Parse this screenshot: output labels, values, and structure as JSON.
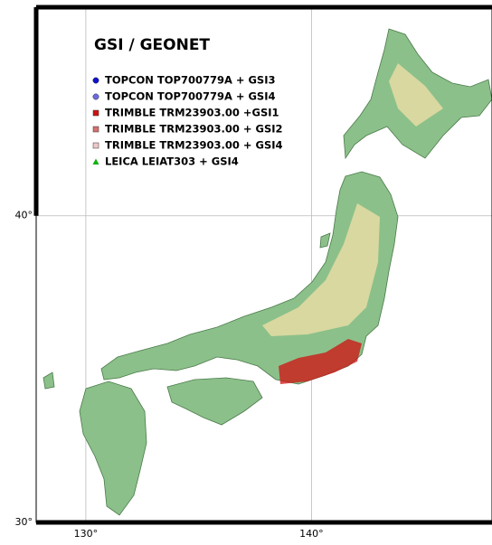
{
  "map": {
    "title": "GSI / GEONET",
    "legend": [
      {
        "label": "TOPCON TOP700779A + GSI3",
        "marker": "circle",
        "color": "#1010d0"
      },
      {
        "label": "TOPCON TOP700779A + GSI4",
        "marker": "circle",
        "color": "#6a6ae0"
      },
      {
        "label": "TRIMBLE TRM23903.00 +GSI1",
        "marker": "square",
        "color": "#d01010"
      },
      {
        "label": "TRIMBLE TRM23903.00 + GSI2",
        "marker": "square",
        "color": "#d87070"
      },
      {
        "label": "TRIMBLE TRM23903.00 + GSI4",
        "marker": "square",
        "color": "#f0c8c8"
      },
      {
        "label": "LEICA LEIAT303 + GSI4",
        "marker": "triangle",
        "color": "#10b010"
      }
    ],
    "lon_range": [
      127.8,
      148
    ],
    "lat_range": [
      30,
      46.8
    ],
    "lon_ticks": [
      {
        "value": 130,
        "label": "130°"
      },
      {
        "value": 140,
        "label": "140°"
      }
    ],
    "lat_ticks": [
      {
        "value": 40,
        "label": "40°"
      },
      {
        "value": 30,
        "label": "30°"
      }
    ]
  }
}
